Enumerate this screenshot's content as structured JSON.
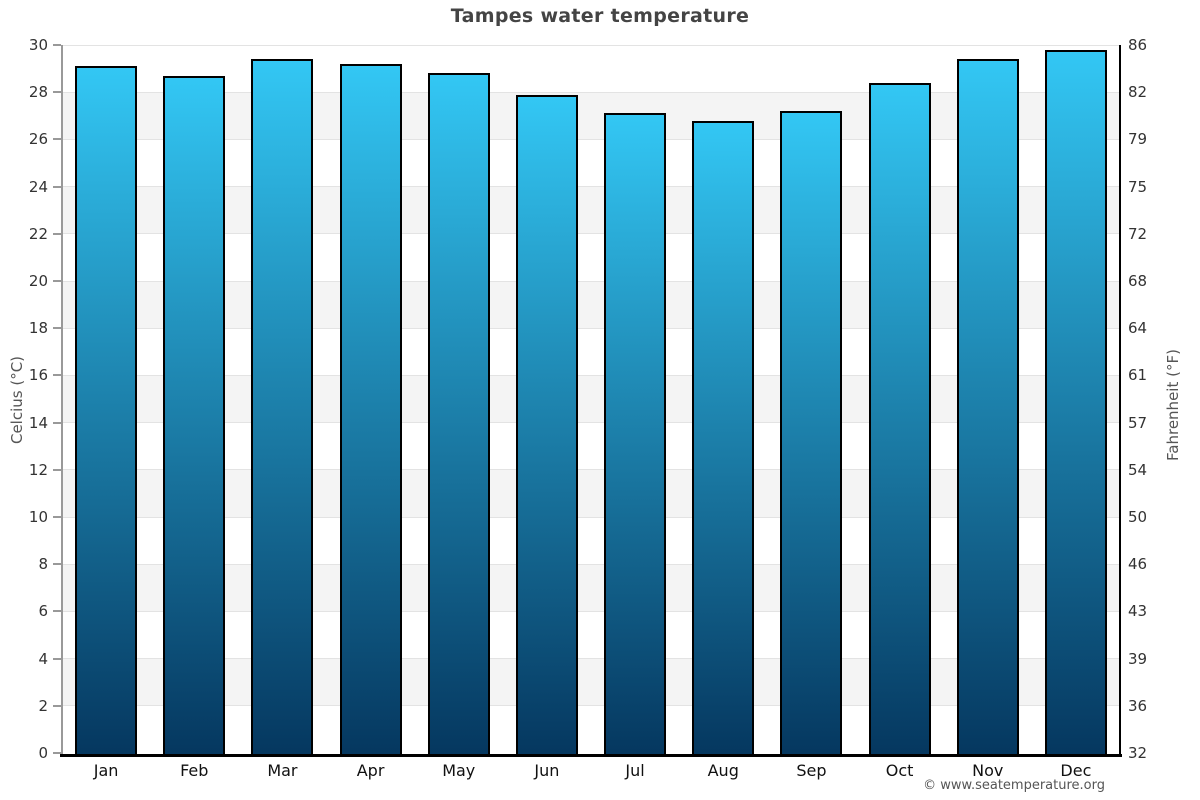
{
  "footer": {
    "text": "© www.seatemperature.org"
  },
  "chart_data": {
    "type": "bar",
    "title": "Tampes water temperature",
    "categories": [
      "Jan",
      "Feb",
      "Mar",
      "Apr",
      "May",
      "Jun",
      "Jul",
      "Aug",
      "Sep",
      "Oct",
      "Nov",
      "Dec"
    ],
    "values": [
      29.1,
      28.7,
      29.4,
      29.2,
      28.8,
      27.9,
      27.1,
      26.8,
      27.2,
      28.4,
      29.4,
      29.8
    ],
    "ylabel": "Celcius (°C)",
    "ylabel_right": "Fahrenheit (°F)",
    "ylim": [
      0,
      30
    ],
    "yticks_celsius": [
      0,
      2,
      4,
      6,
      8,
      10,
      12,
      14,
      16,
      18,
      20,
      22,
      24,
      26,
      28,
      30
    ],
    "yticks_fahrenheit": [
      32,
      36,
      39,
      43,
      46,
      50,
      54,
      57,
      61,
      64,
      68,
      72,
      75,
      79,
      82,
      86
    ],
    "legend": "none",
    "grid": "alternating-horizontal-bands",
    "colors": {
      "bar_gradient_top": "#33c7f4",
      "bar_gradient_bottom": "#05375f",
      "bar_border": "#000000",
      "band_gray": "#f4f4f4",
      "band_white": "#ffffff",
      "gridline": "#e3e3e3",
      "axis_left": "#999999",
      "axis_right": "#000000",
      "baseline": "#000000",
      "title_text": "#444444",
      "tick_text": "#333333",
      "month_text": "#111111",
      "axis_title_text": "#555555",
      "footer_text": "#555555"
    }
  }
}
